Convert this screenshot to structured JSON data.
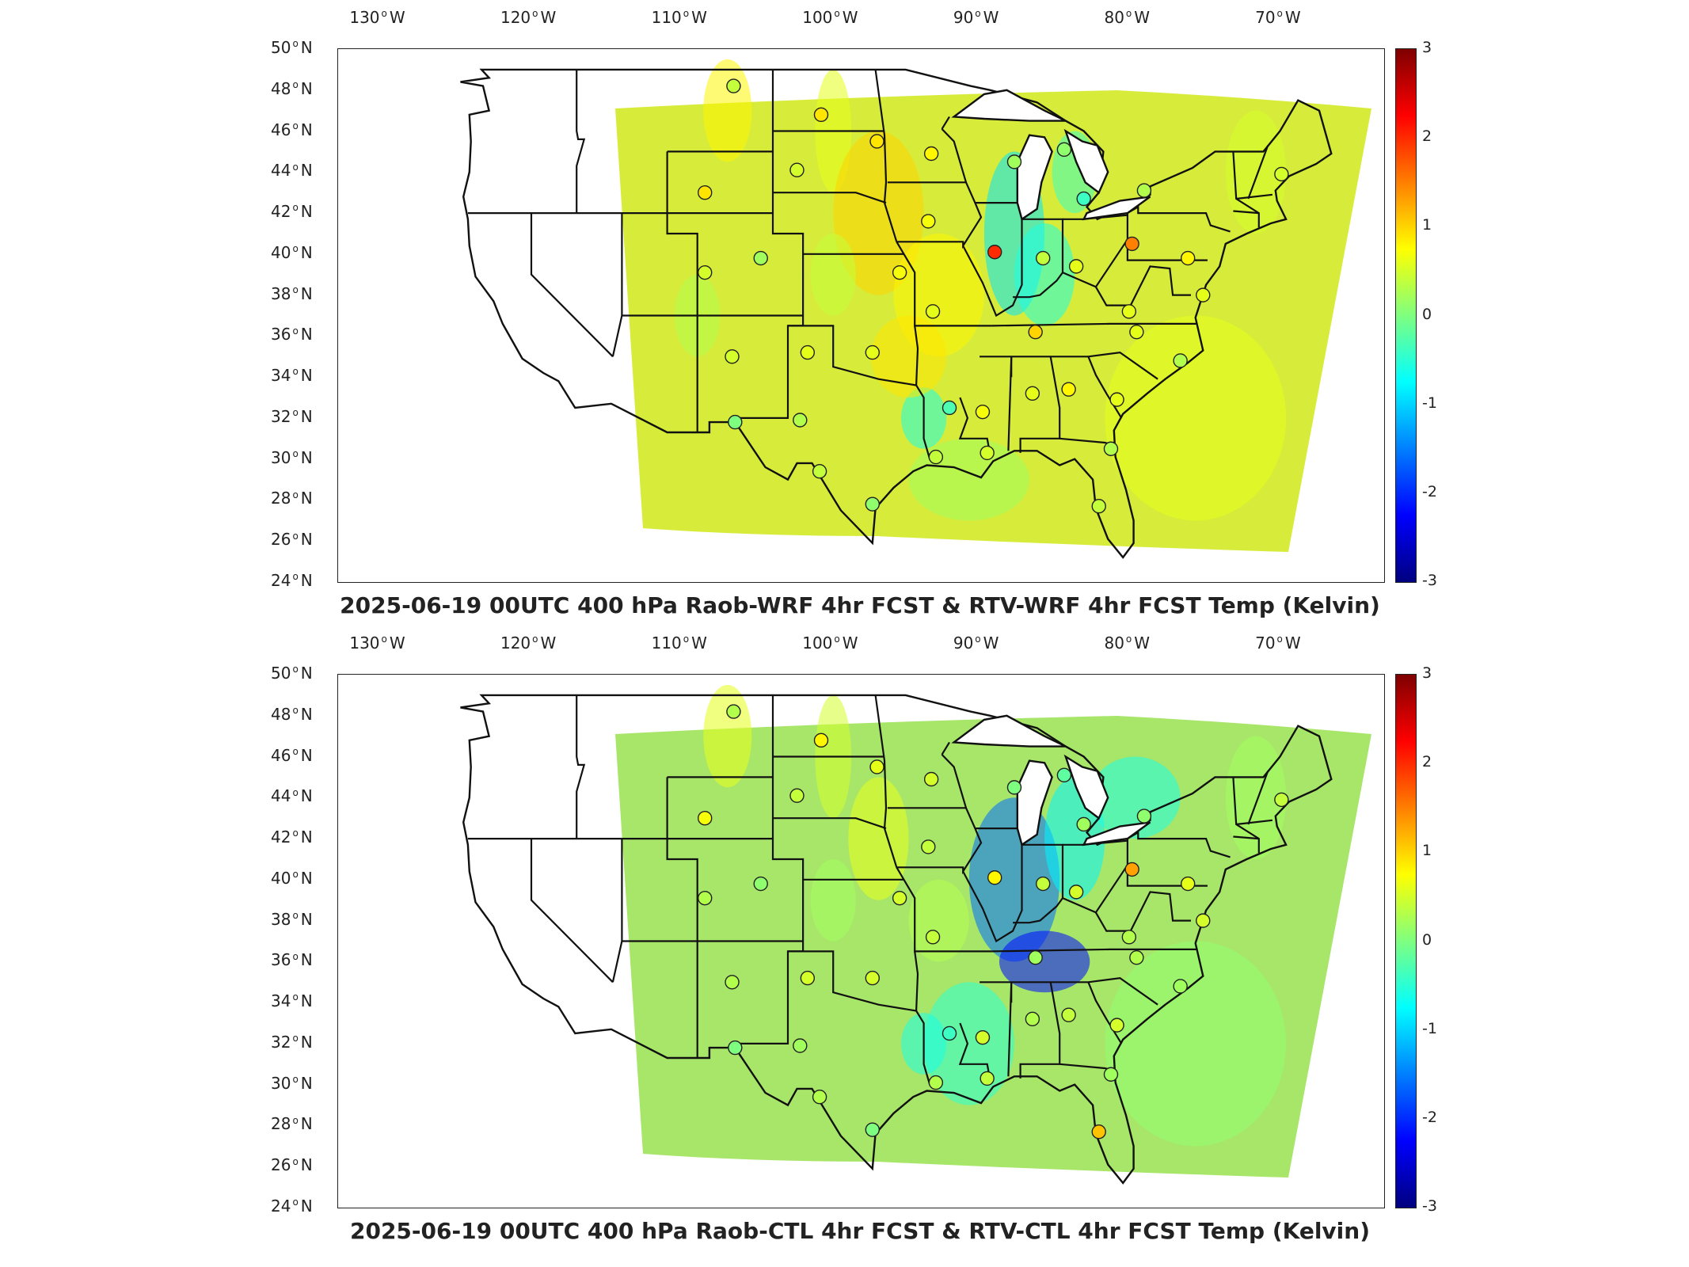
{
  "colorbar": {
    "colors": [
      "#00007f",
      "#0000ff",
      "#007fff",
      "#00ffff",
      "#7fff7f",
      "#ffff00",
      "#ff7f00",
      "#ff0000",
      "#7f0000"
    ],
    "ticks": [
      "3",
      "2",
      "1",
      "0",
      "-1",
      "-2",
      "-3"
    ]
  },
  "axes": {
    "lon_ticks": [
      {
        "deg": "130",
        "hemi": "W"
      },
      {
        "deg": "120",
        "hemi": "W"
      },
      {
        "deg": "110",
        "hemi": "W"
      },
      {
        "deg": "100",
        "hemi": "W"
      },
      {
        "deg": "90",
        "hemi": "W"
      },
      {
        "deg": "80",
        "hemi": "W"
      },
      {
        "deg": "70",
        "hemi": "W"
      }
    ],
    "lat_ticks": [
      {
        "deg": "50",
        "hemi": "N"
      },
      {
        "deg": "48",
        "hemi": "N"
      },
      {
        "deg": "46",
        "hemi": "N"
      },
      {
        "deg": "44",
        "hemi": "N"
      },
      {
        "deg": "42",
        "hemi": "N"
      },
      {
        "deg": "40",
        "hemi": "N"
      },
      {
        "deg": "38",
        "hemi": "N"
      },
      {
        "deg": "36",
        "hemi": "N"
      },
      {
        "deg": "34",
        "hemi": "N"
      },
      {
        "deg": "32",
        "hemi": "N"
      },
      {
        "deg": "30",
        "hemi": "N"
      },
      {
        "deg": "28",
        "hemi": "N"
      },
      {
        "deg": "26",
        "hemi": "N"
      },
      {
        "deg": "24",
        "hemi": "N"
      }
    ]
  },
  "panels": [
    {
      "title": "2025-06-19 00UTC 400 hPa Raob-WRF 4hr FCST & RTV-WRF 4hr FCST Temp (Kelvin)",
      "field_color": "#d7ec3a",
      "stations": [
        {
          "lon": -106.6,
          "lat": 48.2,
          "value": 0.4
        },
        {
          "lon": -100.8,
          "lat": 46.8,
          "value": 0.9
        },
        {
          "lon": -97.1,
          "lat": 45.5,
          "value": 0.9
        },
        {
          "lon": -93.5,
          "lat": 44.9,
          "value": 0.8
        },
        {
          "lon": -108.5,
          "lat": 43.0,
          "value": 0.9
        },
        {
          "lon": -102.4,
          "lat": 44.1,
          "value": 0.5
        },
        {
          "lon": -88.0,
          "lat": 44.5,
          "value": 0.2
        },
        {
          "lon": -84.7,
          "lat": 45.1,
          "value": 0.1
        },
        {
          "lon": -83.4,
          "lat": 42.7,
          "value": -0.4
        },
        {
          "lon": -79.4,
          "lat": 43.1,
          "value": 0.3
        },
        {
          "lon": -70.3,
          "lat": 43.9,
          "value": 0.5
        },
        {
          "lon": -93.7,
          "lat": 41.6,
          "value": 0.7
        },
        {
          "lon": -89.3,
          "lat": 40.1,
          "value": 2.0
        },
        {
          "lon": -86.1,
          "lat": 39.8,
          "value": 0.4
        },
        {
          "lon": -80.2,
          "lat": 40.5,
          "value": 1.5
        },
        {
          "lon": -83.9,
          "lat": 39.4,
          "value": 0.6
        },
        {
          "lon": -108.5,
          "lat": 39.1,
          "value": 0.5
        },
        {
          "lon": -104.8,
          "lat": 39.8,
          "value": 0.2
        },
        {
          "lon": -95.6,
          "lat": 39.1,
          "value": 0.7
        },
        {
          "lon": -93.4,
          "lat": 37.2,
          "value": 0.6
        },
        {
          "lon": -80.4,
          "lat": 37.2,
          "value": 0.6
        },
        {
          "lon": -76.5,
          "lat": 39.8,
          "value": 0.8
        },
        {
          "lon": -75.5,
          "lat": 38.0,
          "value": 0.6
        },
        {
          "lon": -86.6,
          "lat": 36.2,
          "value": 1.0
        },
        {
          "lon": -79.9,
          "lat": 36.2,
          "value": 0.6
        },
        {
          "lon": -77.0,
          "lat": 34.8,
          "value": 0.3
        },
        {
          "lon": -106.7,
          "lat": 35.0,
          "value": 0.5
        },
        {
          "lon": -101.7,
          "lat": 35.2,
          "value": 0.6
        },
        {
          "lon": -97.4,
          "lat": 35.2,
          "value": 0.6
        },
        {
          "lon": -92.3,
          "lat": 32.5,
          "value": -0.3
        },
        {
          "lon": -90.1,
          "lat": 32.3,
          "value": 0.7
        },
        {
          "lon": -86.8,
          "lat": 33.2,
          "value": 0.6
        },
        {
          "lon": -84.4,
          "lat": 33.4,
          "value": 0.8
        },
        {
          "lon": -81.2,
          "lat": 32.9,
          "value": 0.6
        },
        {
          "lon": -106.5,
          "lat": 31.8,
          "value": 0.0
        },
        {
          "lon": -102.2,
          "lat": 31.9,
          "value": 0.3
        },
        {
          "lon": -93.2,
          "lat": 30.1,
          "value": 0.4
        },
        {
          "lon": -89.8,
          "lat": 30.3,
          "value": 0.5
        },
        {
          "lon": -81.6,
          "lat": 30.5,
          "value": 0.3
        },
        {
          "lon": -100.9,
          "lat": 29.4,
          "value": 0.4
        },
        {
          "lon": -97.4,
          "lat": 27.8,
          "value": 0.1
        },
        {
          "lon": -82.4,
          "lat": 27.7,
          "value": 0.4
        }
      ]
    },
    {
      "title": "2025-06-19 00UTC 400 hPa Raob-CTL 4hr FCST & RTV-CTL 4hr FCST Temp (Kelvin)",
      "field_color": "#a8e66a",
      "stations": [
        {
          "lon": -106.6,
          "lat": 48.2,
          "value": 0.3
        },
        {
          "lon": -100.8,
          "lat": 46.8,
          "value": 0.8
        },
        {
          "lon": -97.1,
          "lat": 45.5,
          "value": 0.6
        },
        {
          "lon": -93.5,
          "lat": 44.9,
          "value": 0.5
        },
        {
          "lon": -108.5,
          "lat": 43.0,
          "value": 0.7
        },
        {
          "lon": -102.4,
          "lat": 44.1,
          "value": 0.4
        },
        {
          "lon": -88.0,
          "lat": 44.5,
          "value": 0.0
        },
        {
          "lon": -84.7,
          "lat": 45.1,
          "value": -0.2
        },
        {
          "lon": -83.4,
          "lat": 42.7,
          "value": 0.2
        },
        {
          "lon": -79.4,
          "lat": 43.1,
          "value": 0.1
        },
        {
          "lon": -70.3,
          "lat": 43.9,
          "value": 0.4
        },
        {
          "lon": -93.7,
          "lat": 41.6,
          "value": 0.4
        },
        {
          "lon": -89.3,
          "lat": 40.1,
          "value": 0.8
        },
        {
          "lon": -86.1,
          "lat": 39.8,
          "value": 0.4
        },
        {
          "lon": -80.2,
          "lat": 40.5,
          "value": 1.3
        },
        {
          "lon": -83.9,
          "lat": 39.4,
          "value": 0.5
        },
        {
          "lon": -108.5,
          "lat": 39.1,
          "value": 0.3
        },
        {
          "lon": -104.8,
          "lat": 39.8,
          "value": 0.1
        },
        {
          "lon": -95.6,
          "lat": 39.1,
          "value": 0.5
        },
        {
          "lon": -93.4,
          "lat": 37.2,
          "value": 0.4
        },
        {
          "lon": -80.4,
          "lat": 37.2,
          "value": 0.3
        },
        {
          "lon": -76.5,
          "lat": 39.8,
          "value": 0.6
        },
        {
          "lon": -75.5,
          "lat": 38.0,
          "value": 0.5
        },
        {
          "lon": -86.6,
          "lat": 36.2,
          "value": 0.2
        },
        {
          "lon": -79.9,
          "lat": 36.2,
          "value": 0.3
        },
        {
          "lon": -77.0,
          "lat": 34.8,
          "value": 0.2
        },
        {
          "lon": -106.7,
          "lat": 35.0,
          "value": 0.3
        },
        {
          "lon": -101.7,
          "lat": 35.2,
          "value": 0.5
        },
        {
          "lon": -97.4,
          "lat": 35.2,
          "value": 0.5
        },
        {
          "lon": -92.3,
          "lat": 32.5,
          "value": -0.4
        },
        {
          "lon": -90.1,
          "lat": 32.3,
          "value": 0.5
        },
        {
          "lon": -86.8,
          "lat": 33.2,
          "value": 0.3
        },
        {
          "lon": -84.4,
          "lat": 33.4,
          "value": 0.4
        },
        {
          "lon": -81.2,
          "lat": 32.9,
          "value": 0.5
        },
        {
          "lon": -106.5,
          "lat": 31.8,
          "value": 0.0
        },
        {
          "lon": -102.2,
          "lat": 31.9,
          "value": 0.2
        },
        {
          "lon": -93.2,
          "lat": 30.1,
          "value": 0.3
        },
        {
          "lon": -89.8,
          "lat": 30.3,
          "value": 0.4
        },
        {
          "lon": -81.6,
          "lat": 30.5,
          "value": 0.2
        },
        {
          "lon": -100.9,
          "lat": 29.4,
          "value": 0.3
        },
        {
          "lon": -97.4,
          "lat": 27.8,
          "value": 0.0
        },
        {
          "lon": -82.4,
          "lat": 27.7,
          "value": 1.1
        }
      ]
    }
  ]
}
